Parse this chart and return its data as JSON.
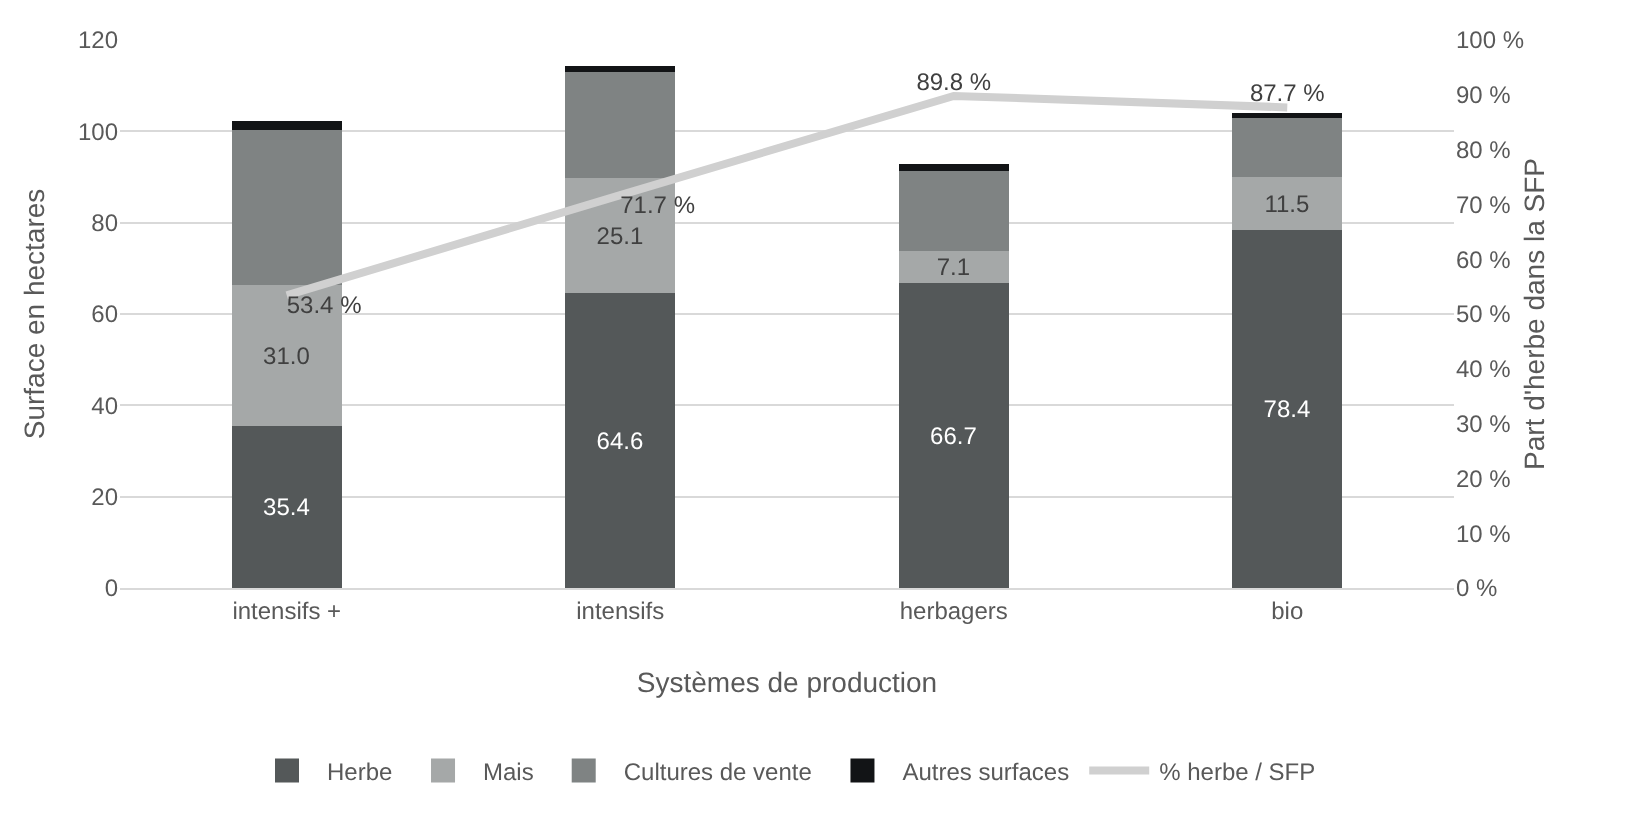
{
  "chart_data": {
    "type": "bar",
    "stacked": true,
    "xlabel": "Systèmes de production",
    "ylabel": "Surface en hectares",
    "y2label": "Part d'herbe dans la SFP",
    "categories": [
      "intensifs +",
      "intensifs",
      "herbagers",
      "bio"
    ],
    "series": [
      {
        "name": "Herbe",
        "color": "#545859",
        "values": [
          35.4,
          64.6,
          66.7,
          78.4
        ],
        "value_labels": [
          "35.4",
          "64.6",
          "66.7",
          "78.4"
        ]
      },
      {
        "name": "Mais",
        "color": "#a5a8a8",
        "values": [
          31.0,
          25.1,
          7.1,
          11.5
        ],
        "value_labels": [
          "31.0",
          "25.1",
          "7.1",
          "11.5"
        ]
      },
      {
        "name": "Cultures de vente",
        "color": "#7f8383",
        "values": [
          33.8,
          23.3,
          17.5,
          13.4
        ]
      },
      {
        "name": "Autres surfaces",
        "color": "#121416",
        "values": [
          2.0,
          1.4,
          1.6,
          0.8
        ]
      },
      {
        "name": "% herbe / SFP",
        "type": "line",
        "axis": "y2",
        "color": "#d0d0d0",
        "values": [
          53.4,
          71.7,
          89.8,
          87.7
        ],
        "value_labels": [
          "53.4 %",
          "71.7 %",
          "89.8 %",
          "87.7 %"
        ]
      }
    ],
    "ylim": [
      0,
      120
    ],
    "yticks": [
      0,
      20,
      40,
      60,
      80,
      100,
      120
    ],
    "y2lim": [
      0,
      100
    ],
    "y2ticks": [
      {
        "value": 0,
        "label": "0 %"
      },
      {
        "value": 10,
        "label": "10 %"
      },
      {
        "value": 20,
        "label": "20 %"
      },
      {
        "value": 30,
        "label": "30 %"
      },
      {
        "value": 40,
        "label": "40 %"
      },
      {
        "value": 50,
        "label": "50 %"
      },
      {
        "value": 60,
        "label": "60 %"
      },
      {
        "value": 70,
        "label": "70 %"
      },
      {
        "value": 80,
        "label": "80 %"
      },
      {
        "value": 90,
        "label": "90 %"
      },
      {
        "value": 100,
        "label": "100 %"
      }
    ],
    "grid": "y",
    "legend": "bottom",
    "marker": "none"
  }
}
